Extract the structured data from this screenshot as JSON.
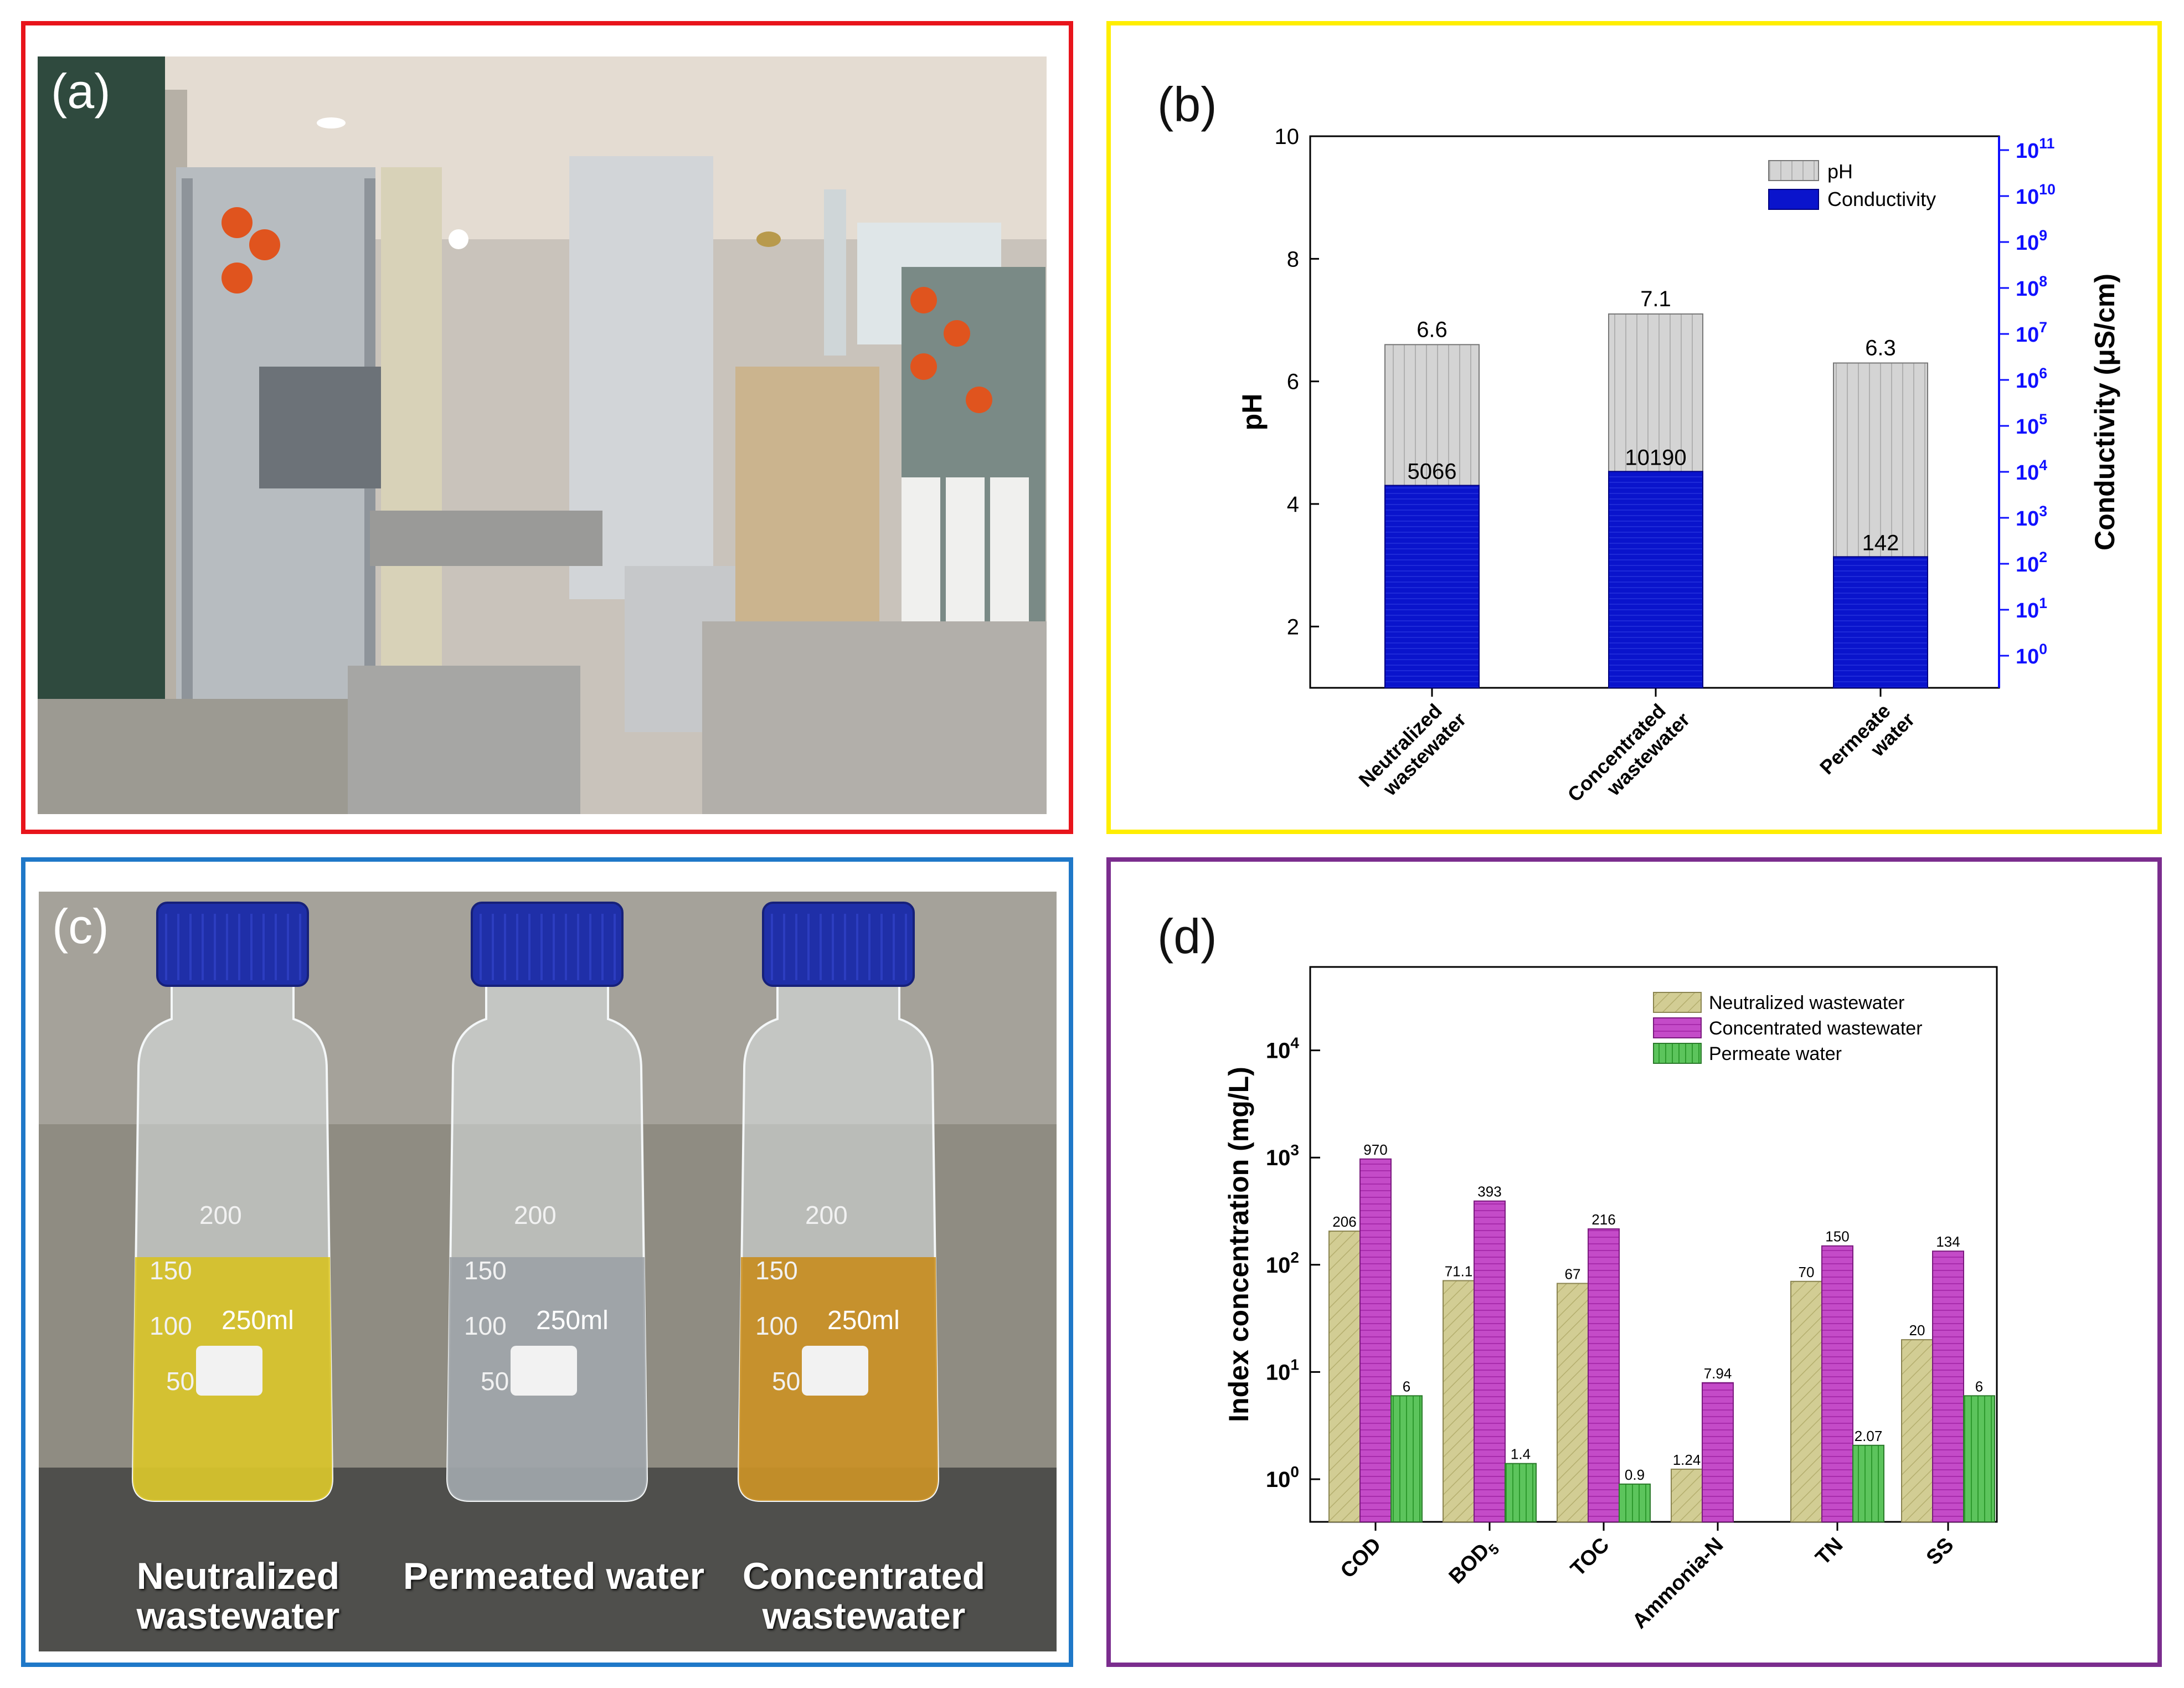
{
  "colors": {
    "panel_a_border": "#e8141b",
    "panel_b_border": "#ffee00",
    "panel_c_border": "#1f78c8",
    "panel_d_border": "#7b2d8e",
    "ph_bar": "#d4d4d4",
    "conductivity_bar": "#0a14cc",
    "right_axis": "#1010ff",
    "neutralized": "#d2cd94",
    "concentrated": "#c44bc8",
    "permeate": "#5cc45c"
  },
  "panel_a": {
    "letter": "(a)",
    "photo_description_icon": "wastewater-treatment-plant-photo"
  },
  "panel_b": {
    "letter": "(b)",
    "chart_data": {
      "type": "bar",
      "categories": [
        "Neutralized wastewater",
        "Concentrated wastewater",
        "Permeate water"
      ],
      "category_labels": [
        [
          "Neutralized",
          "wastewater"
        ],
        [
          "Concentrated",
          "wastewater"
        ],
        [
          "Permeate",
          "water"
        ]
      ],
      "series": [
        {
          "name": "pH",
          "axis": "left",
          "values": [
            6.6,
            7.1,
            6.3
          ],
          "labels": [
            "6.6",
            "7.1",
            "6.3"
          ]
        },
        {
          "name": "Conductivity",
          "axis": "right",
          "values": [
            5066,
            10190,
            142
          ],
          "labels": [
            "5066",
            "10190",
            "142"
          ]
        }
      ],
      "ylabel": "pH",
      "ylim": [
        1,
        10
      ],
      "yticks": [
        2,
        4,
        6,
        8,
        10
      ],
      "y2label": "Conductivity (μS/cm)",
      "y2scale": "log",
      "y2lim": [
        0.2,
        200000000000.0
      ],
      "y2ticks": [
        "10^0",
        "10^1",
        "10^2",
        "10^3",
        "10^4",
        "10^5",
        "10^6",
        "10^7",
        "10^8",
        "10^9",
        "10^10",
        "10^11"
      ],
      "legend": [
        "pH",
        "Conductivity"
      ],
      "legend_position": "top-right"
    }
  },
  "panel_c": {
    "letter": "(c)",
    "bottles": [
      {
        "label": [
          "Neutralized",
          "wastewater"
        ],
        "liquid": "#d8c21a"
      },
      {
        "label": [
          "Permeated water"
        ],
        "liquid": "#9aa0a4"
      },
      {
        "label": [
          "Concentrated",
          "wastewater"
        ],
        "liquid": "#c88a14"
      }
    ],
    "bottle_markings": {
      "volume": "250ml",
      "grad_200": "200",
      "grad_150": "150",
      "grad_100": "100",
      "grad_50": "50"
    }
  },
  "panel_d": {
    "letter": "(d)",
    "chart_data": {
      "type": "bar",
      "categories": [
        "COD",
        "BOD5",
        "TOC",
        "Ammonia-N",
        "TN",
        "SS"
      ],
      "series": [
        {
          "name": "Neutralized wastewater",
          "values": [
            206,
            71.1,
            67,
            1.24,
            70,
            20
          ],
          "labels": [
            "206",
            "71.1",
            "67",
            "1.24",
            "70",
            "20"
          ]
        },
        {
          "name": "Concentrated wastewater",
          "values": [
            970,
            393,
            216,
            7.94,
            150,
            134
          ],
          "labels": [
            "970",
            "393",
            "216",
            "7.94",
            "150",
            "134"
          ]
        },
        {
          "name": "Permeate water",
          "values": [
            6,
            1.4,
            0.9,
            null,
            2.07,
            6
          ],
          "labels": [
            "6",
            "1.4",
            "0.9",
            "",
            "2.07",
            "6"
          ]
        }
      ],
      "ylabel": "Index concentration (mg/L)",
      "yscale": "log",
      "ylim": [
        0.4,
        60000
      ],
      "yticks": [
        "10^0",
        "10^1",
        "10^2",
        "10^3",
        "10^4"
      ],
      "legend_position": "top-right"
    }
  }
}
